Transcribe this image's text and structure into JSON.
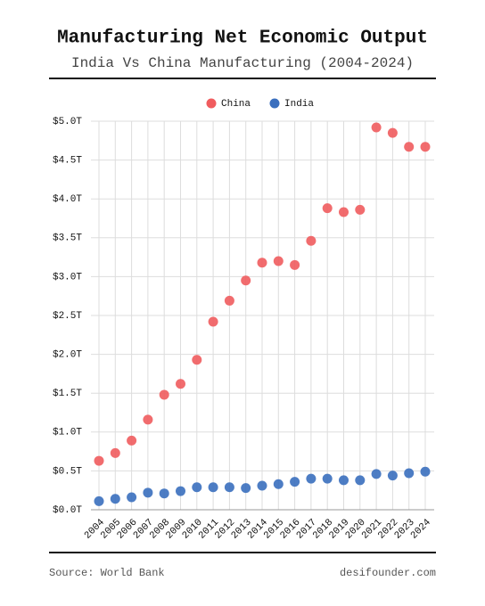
{
  "chart_data": {
    "type": "dot",
    "title": "Manufacturing Net Economic Output",
    "subtitle": "India Vs China Manufacturing (2004-2024)",
    "categories": [
      "2004",
      "2005",
      "2006",
      "2007",
      "2008",
      "2009",
      "2010",
      "2011",
      "2012",
      "2013",
      "2014",
      "2015",
      "2016",
      "2017",
      "2018",
      "2019",
      "2020",
      "2021",
      "2022",
      "2023",
      "2024"
    ],
    "series": [
      {
        "name": "China",
        "color": "#f05c5e",
        "values": [
          0.63,
          0.73,
          0.89,
          1.16,
          1.48,
          1.62,
          1.93,
          2.42,
          2.69,
          2.95,
          3.18,
          3.2,
          3.15,
          3.46,
          3.88,
          3.83,
          3.86,
          4.92,
          4.85,
          4.67,
          4.67
        ]
      },
      {
        "name": "India",
        "color": "#3a6fbe",
        "values": [
          0.11,
          0.14,
          0.16,
          0.22,
          0.21,
          0.24,
          0.29,
          0.29,
          0.29,
          0.28,
          0.31,
          0.33,
          0.36,
          0.4,
          0.4,
          0.38,
          0.38,
          0.46,
          0.44,
          0.47,
          0.49
        ]
      }
    ],
    "ylim": [
      0,
      5
    ],
    "yticks": [
      {
        "value": 0,
        "label": "$0.0T"
      },
      {
        "value": 0.5,
        "label": "$0.5T"
      },
      {
        "value": 1,
        "label": "$1.0T"
      },
      {
        "value": 1.5,
        "label": "$1.5T"
      },
      {
        "value": 2,
        "label": "$2.0T"
      },
      {
        "value": 2.5,
        "label": "$2.5T"
      },
      {
        "value": 3,
        "label": "$3.0T"
      },
      {
        "value": 3.5,
        "label": "$3.5T"
      },
      {
        "value": 4,
        "label": "$4.0T"
      },
      {
        "value": 4.5,
        "label": "$4.5T"
      },
      {
        "value": 5,
        "label": "$5.0T"
      }
    ],
    "grid": true,
    "legend": "top",
    "source": "Source: World Bank",
    "credit": "desifounder.com"
  }
}
